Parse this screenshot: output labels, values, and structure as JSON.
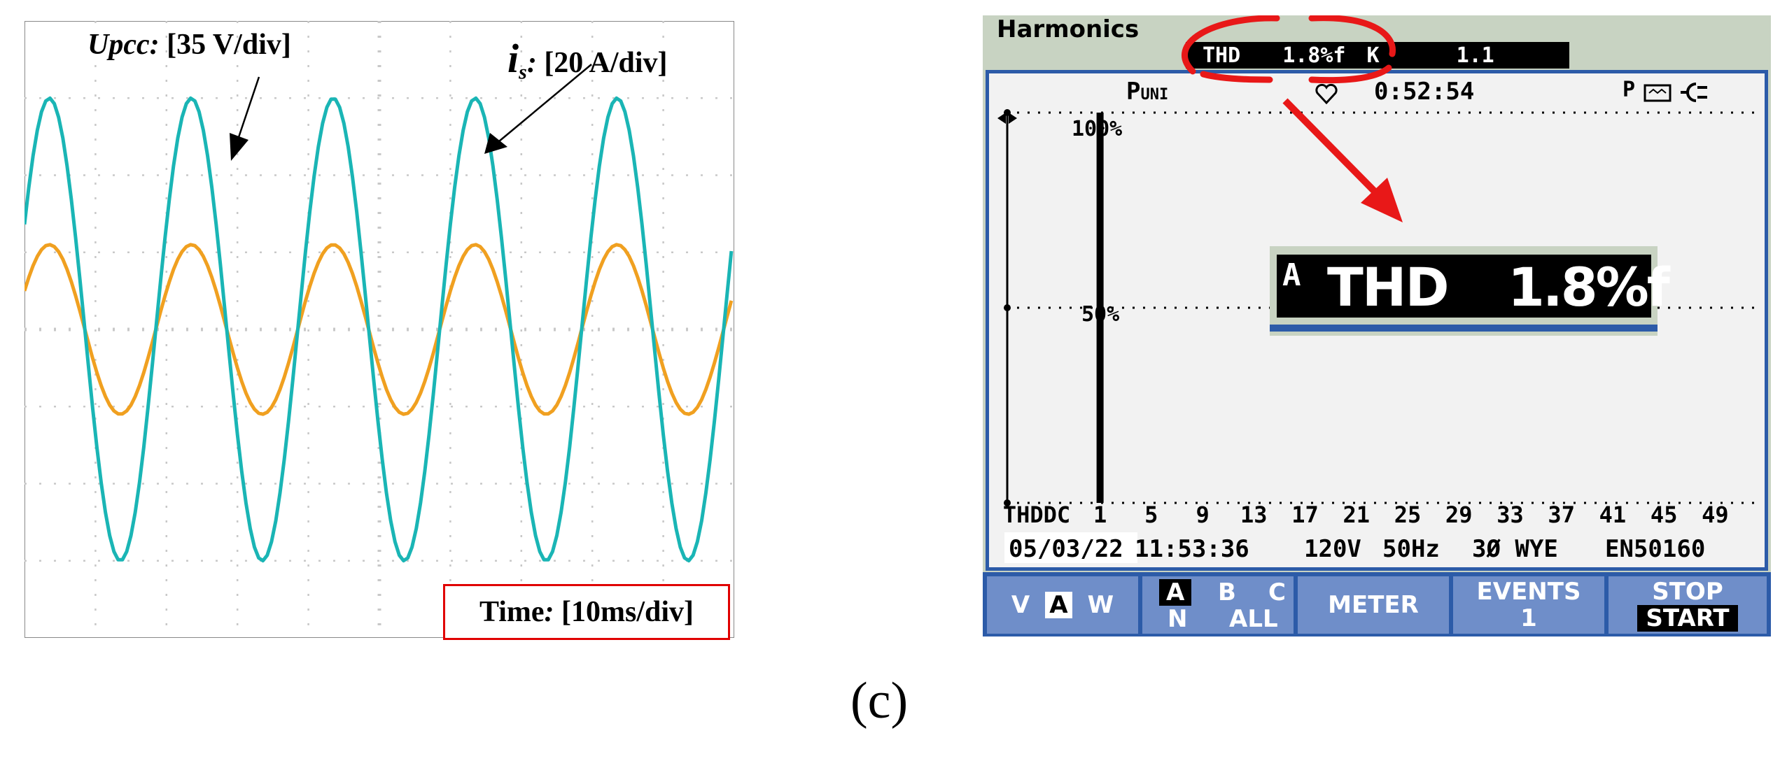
{
  "oscilloscope": {
    "upcc_label_name": "Upcc:",
    "upcc_label_scale": "[35 V/div]",
    "is_label_letter": "i",
    "is_label_sub": "s",
    "is_label_colon": ":",
    "is_label_scale": "[20 A/div]",
    "time_label_name": "Time",
    "time_label_colon": ":",
    "time_label_scale": "[10ms/div]",
    "colors": {
      "upcc": "#1ab5b5",
      "is": "#f0a020",
      "grid": "#c8c8c8",
      "time_box": "#e00000"
    }
  },
  "chart_data": [
    {
      "type": "line",
      "title": "",
      "xlabel": "Time: [10ms/div]",
      "ylabel": "",
      "xlim": [
        0,
        100
      ],
      "x_units": "ms",
      "ylim": [
        -4,
        4
      ],
      "y_units": "div",
      "grid": "on (10 x 8 divisions, dotted)",
      "series": [
        {
          "name": "Upcc",
          "scale": "35 V/div",
          "amplitude_div": 3.0,
          "offset_div": 0.0,
          "frequency_hz": 50,
          "peaks_ms": [
            23.5,
            65.5
          ],
          "color": "#1ab5b5"
        },
        {
          "name": "is",
          "scale": "20 A/div",
          "amplitude_div": 1.1,
          "offset_div": 0.0,
          "frequency_hz": 50,
          "peaks_ms": [
            23.5,
            65.5
          ],
          "color": "#f0a020"
        }
      ]
    },
    {
      "type": "bar",
      "title": "Harmonics",
      "xlabel": "",
      "ylabel": "",
      "ylim": [
        0,
        100
      ],
      "categories": [
        "THD",
        "DC",
        "1",
        "5",
        "9",
        "13",
        "17",
        "21",
        "25",
        "29",
        "33",
        "37",
        "41",
        "45",
        "49"
      ],
      "values": [
        1.8,
        0,
        100,
        0,
        0,
        0,
        0,
        0,
        0,
        0,
        0,
        0,
        0,
        0,
        0
      ],
      "y_tick_labels": [
        "100%",
        "50%"
      ]
    }
  ],
  "analyzer": {
    "title": "Harmonics",
    "header_thd_label": "THD",
    "header_thd_value": "1.8%f",
    "header_k_label": "K",
    "header_k_value": "1.1",
    "mode_label_main": "P",
    "mode_label_sub": "UNI",
    "elapsed_time": "0:52:54",
    "status_icons": "P",
    "ytick_100": "100%",
    "ytick_50": "50%",
    "x_labels": [
      "THDDC",
      "1",
      "5",
      "9",
      "13",
      "17",
      "21",
      "25",
      "29",
      "33",
      "37",
      "41",
      "45",
      "49"
    ],
    "date": "05/03/22",
    "time": "11:53:36",
    "voltage": "120V",
    "frequency": "50Hz",
    "config": "3Ø WYE",
    "standard": "EN50160",
    "zoom_phase": "A",
    "zoom_label": "THD",
    "zoom_value": "1.8%f",
    "softkeys": {
      "k1": {
        "v": "V",
        "a": "A",
        "w": "W"
      },
      "k2": {
        "a": "A",
        "b": "B",
        "c": "C",
        "n": "N",
        "all": "ALL"
      },
      "k3": {
        "label": "METER"
      },
      "k4": {
        "label": "EVENTS",
        "value": "1"
      },
      "k5": {
        "top": "STOP",
        "bottom": "START"
      }
    },
    "colors": {
      "header_bg": "#c8d3c2",
      "screen_border": "#2c5ba8",
      "softkey_bg": "#6f8ec9",
      "annotation": "#e81818"
    }
  },
  "caption": "(c)"
}
